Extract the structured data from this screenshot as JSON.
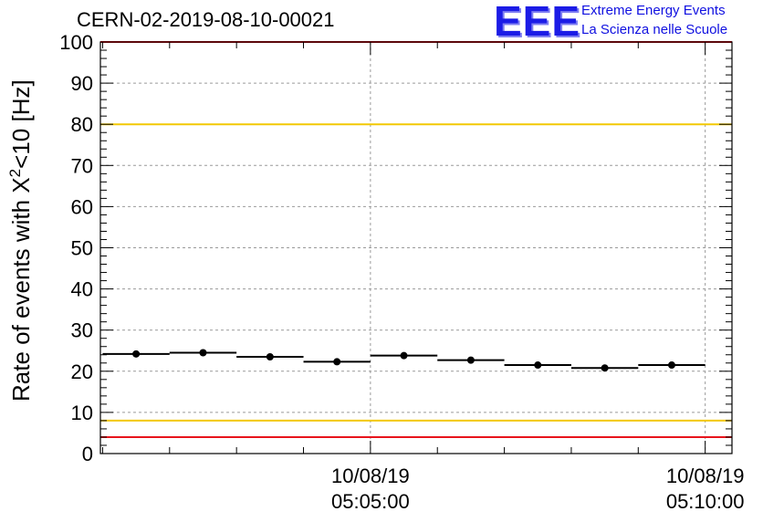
{
  "header": {
    "run_title": "CERN-02-2019-08-10-00021",
    "logo_text": "EEE",
    "logo_line1": "Extreme Energy Events",
    "logo_line2": "La Scienza nelle Scuole"
  },
  "chart_data": {
    "type": "scatter",
    "title": "CERN-02-2019-08-10-00021",
    "ylabel_prefix": "Rate of events with X",
    "ylabel_sup": "2",
    "ylabel_suffix": "<10 [Hz]",
    "xlabel": "",
    "ylim": [
      0,
      100
    ],
    "yticks": [
      0,
      10,
      20,
      30,
      40,
      50,
      60,
      70,
      80,
      90,
      100
    ],
    "xlim": [
      "10/08/19 05:00:58",
      "10/08/19 05:10:24"
    ],
    "xticks": [
      {
        "date": "10/08/19",
        "time": "05:05:00"
      },
      {
        "date": "10/08/19",
        "time": "05:10:00"
      }
    ],
    "grid": true,
    "series": [
      {
        "points": [
          {
            "x": "05:01:30",
            "y": 24.2,
            "x_err_s": 30
          },
          {
            "x": "05:02:30",
            "y": 24.5,
            "x_err_s": 30
          },
          {
            "x": "05:03:30",
            "y": 23.5,
            "x_err_s": 30
          },
          {
            "x": "05:04:30",
            "y": 22.3,
            "x_err_s": 30
          },
          {
            "x": "05:05:30",
            "y": 23.8,
            "x_err_s": 30
          },
          {
            "x": "05:06:30",
            "y": 22.7,
            "x_err_s": 30
          },
          {
            "x": "05:07:30",
            "y": 21.5,
            "x_err_s": 30
          },
          {
            "x": "05:08:30",
            "y": 20.8,
            "x_err_s": 30
          },
          {
            "x": "05:09:30",
            "y": 21.5,
            "x_err_s": 30
          }
        ]
      }
    ],
    "reference_lines": [
      {
        "y": 100,
        "color": "#e8141c"
      },
      {
        "y": 80,
        "color": "#f2c800"
      },
      {
        "y": 8,
        "color": "#f2c800"
      },
      {
        "y": 4,
        "color": "#e8141c"
      }
    ]
  }
}
